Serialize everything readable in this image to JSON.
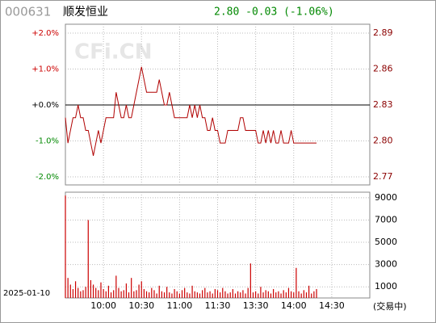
{
  "header": {
    "code": "000631",
    "name": "顺发恒业",
    "quote": "2.80 -0.03 (-1.06%)"
  },
  "watermark": "CFi.CN",
  "date": "2025-01-10",
  "status": "(交易中)",
  "chart_data": [
    {
      "type": "line",
      "x": [
        0,
        2,
        4,
        6,
        8,
        10,
        12,
        14,
        16,
        18,
        20,
        22,
        24,
        26,
        28,
        30,
        32,
        34,
        36,
        38,
        40,
        42,
        44,
        46,
        48,
        50,
        52,
        54,
        56,
        58,
        60,
        62,
        64,
        66,
        68,
        70,
        72,
        74,
        76,
        78,
        80,
        82,
        84,
        86,
        88,
        90,
        92,
        94,
        96,
        98,
        100,
        102,
        104,
        106,
        108,
        110,
        112,
        114,
        116,
        118,
        120,
        122,
        124,
        126,
        128,
        130,
        132,
        134,
        136,
        138,
        140,
        142,
        144,
        146,
        148,
        150,
        152,
        154,
        156,
        158,
        160,
        162,
        164,
        166,
        168,
        170,
        172,
        174,
        176,
        178,
        180,
        182,
        184,
        186,
        188,
        190,
        192,
        194,
        196,
        198
      ],
      "xlim": [
        0,
        240
      ],
      "series": [
        {
          "color": "#b00000",
          "values": [
            2.82,
            2.8,
            2.81,
            2.82,
            2.82,
            2.83,
            2.82,
            2.82,
            2.81,
            2.81,
            2.8,
            2.79,
            2.8,
            2.81,
            2.8,
            2.81,
            2.82,
            2.82,
            2.82,
            2.82,
            2.84,
            2.83,
            2.82,
            2.82,
            2.83,
            2.82,
            2.82,
            2.83,
            2.84,
            2.85,
            2.86,
            2.85,
            2.84,
            2.84,
            2.84,
            2.84,
            2.84,
            2.85,
            2.84,
            2.83,
            2.83,
            2.84,
            2.83,
            2.82,
            2.82,
            2.82,
            2.82,
            2.82,
            2.82,
            2.83,
            2.82,
            2.83,
            2.82,
            2.83,
            2.82,
            2.82,
            2.81,
            2.81,
            2.82,
            2.81,
            2.81,
            2.8,
            2.8,
            2.8,
            2.81,
            2.81,
            2.81,
            2.81,
            2.81,
            2.82,
            2.82,
            2.81,
            2.81,
            2.81,
            2.81,
            2.81,
            2.8,
            2.8,
            2.81,
            2.8,
            2.81,
            2.8,
            2.81,
            2.8,
            2.8,
            2.81,
            2.8,
            2.8,
            2.8,
            2.81,
            2.8,
            2.8,
            2.8,
            2.8,
            2.8,
            2.8,
            2.8,
            2.8,
            2.8,
            2.8
          ]
        }
      ],
      "ylim": [
        2.7734,
        2.8866
      ],
      "yticks": [
        {
          "value": 2.8866,
          "label": "2.89"
        },
        {
          "value": 2.8583,
          "label": "2.86"
        },
        2.83,
        {
          "value": 2.8017,
          "label": "2.80"
        },
        {
          "value": 2.7734,
          "label": "2.77"
        }
      ],
      "y2lim": [
        -2,
        2
      ],
      "y2ticks": [
        {
          "value": 2,
          "label": "+2.0%"
        },
        {
          "value": 1,
          "label": "+1.0%"
        },
        {
          "value": 0,
          "label": "+0.0%"
        },
        {
          "value": -1,
          "label": "-1.0%"
        },
        {
          "value": -2,
          "label": "-2.0%"
        }
      ],
      "grid": true
    },
    {
      "type": "bar",
      "color": "#cc0000",
      "values": [
        9200,
        1800,
        1200,
        800,
        1500,
        900,
        600,
        700,
        1000,
        7000,
        1600,
        1200,
        900,
        700,
        1400,
        800,
        600,
        1100,
        500,
        700,
        2000,
        900,
        600,
        700,
        1300,
        500,
        1800,
        600,
        700,
        1200,
        1500,
        800,
        600,
        500,
        900,
        700,
        400,
        1100,
        600,
        500,
        1000,
        500,
        400,
        800,
        600,
        400,
        700,
        900,
        500,
        400,
        1100,
        600,
        500,
        400,
        700,
        900,
        500,
        600,
        400,
        800,
        700,
        500,
        900,
        600,
        400,
        500,
        800,
        400,
        600,
        500,
        700,
        400,
        900,
        3100,
        500,
        600,
        400,
        1000,
        500,
        700,
        600,
        400,
        800,
        500,
        600,
        400,
        700,
        500,
        900,
        600,
        500,
        2700,
        600,
        400,
        700,
        500,
        1100,
        400,
        600,
        800
      ],
      "xlim": [
        0,
        240
      ],
      "xticks": [
        {
          "value": 30,
          "label": "10:00"
        },
        {
          "value": 60,
          "label": "10:30"
        },
        {
          "value": 90,
          "label": "11:00"
        },
        {
          "value": 120,
          "label": "11:30"
        },
        {
          "value": 150,
          "label": "13:30"
        },
        {
          "value": 180,
          "label": "14:00"
        },
        {
          "value": 210,
          "label": "14:30"
        }
      ],
      "ylim": [
        0,
        9500
      ],
      "yticks": [
        1000,
        3000,
        5000,
        7000,
        9000
      ],
      "grid": true
    }
  ]
}
